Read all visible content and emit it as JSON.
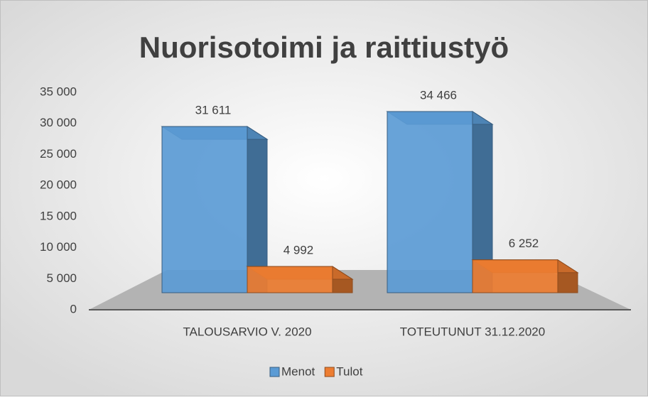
{
  "chart_data": {
    "type": "bar3d",
    "title": "Nuorisotoimi ja raittiustyö",
    "categories": [
      "TALOUSARVIO V. 2020",
      "TOTEUTUNUT 31.12.2020"
    ],
    "series": [
      {
        "name": "Menot",
        "color": "#5b9bd5",
        "values": [
          31611,
          34466
        ],
        "value_labels": [
          "31 611",
          "34 466"
        ]
      },
      {
        "name": "Tulot",
        "color": "#ed7d31",
        "values": [
          4992,
          6252
        ],
        "value_labels": [
          "4 992",
          "6 252"
        ]
      }
    ],
    "ylim": [
      0,
      35000
    ],
    "yticks": [
      0,
      {
        "value": 5000,
        "label": "5 000"
      },
      {
        "value": 10000,
        "label": "10 000"
      },
      {
        "value": 15000,
        "label": "15 000"
      },
      {
        "value": 20000,
        "label": "20 000"
      },
      {
        "value": 25000,
        "label": "25 000"
      },
      {
        "value": 30000,
        "label": "30 000"
      },
      {
        "value": 35000,
        "label": "35 000"
      }
    ],
    "grid": true,
    "legend": "bottom"
  }
}
